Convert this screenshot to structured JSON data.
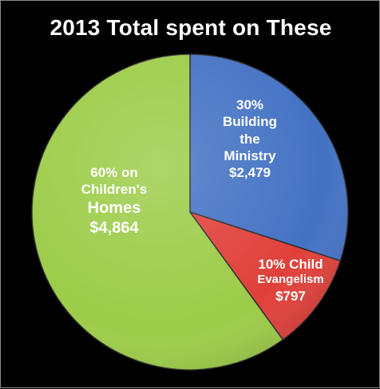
{
  "chart_data": {
    "type": "pie",
    "title": "2013 Total spent on These",
    "slices": [
      {
        "name": "Building the Ministry",
        "percent": 30,
        "value": 2479,
        "color": "#4472c4",
        "label_lines": [
          "30%",
          "Building",
          "the",
          "Ministry",
          "$2,479"
        ]
      },
      {
        "name": "Child Evangelism",
        "percent": 10,
        "value": 797,
        "color": "#e0403a",
        "label_lines": [
          "10% Child",
          "Evangelism",
          "$797"
        ]
      },
      {
        "name": "Children's Homes",
        "percent": 60,
        "value": 4864,
        "color": "#9ccc48",
        "label_lines": [
          "60%  on",
          "Children's",
          "Homes",
          "$4,864"
        ]
      }
    ],
    "start_angle_deg": 0,
    "direction": "clockwise"
  }
}
